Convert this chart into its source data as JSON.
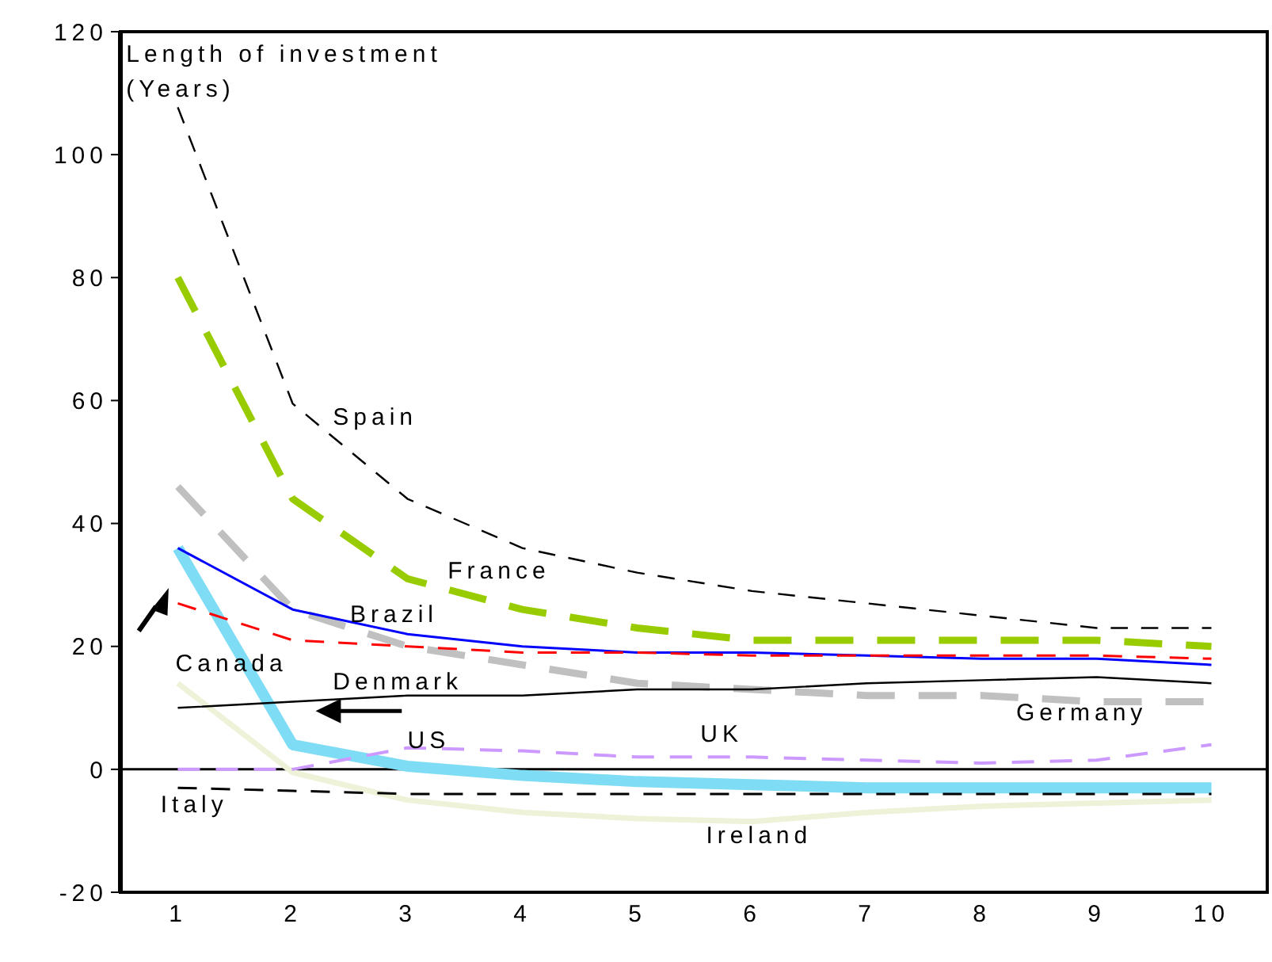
{
  "chart_data": {
    "type": "line",
    "ylabel": "Length of investment (Years)",
    "x": [
      1,
      2,
      3,
      4,
      5,
      6,
      7,
      8,
      9,
      10
    ],
    "xlim": [
      0.5,
      10.5
    ],
    "xticks": [
      1,
      2,
      3,
      4,
      5,
      6,
      7,
      8,
      9,
      10
    ],
    "ylim": [
      -20,
      120
    ],
    "yticks": [
      -20,
      0,
      20,
      40,
      60,
      80,
      100,
      120
    ],
    "grid": false,
    "legend": false,
    "marker": "none",
    "ref_lines": [
      {
        "axis": "y",
        "value": 0,
        "color": "#000000"
      }
    ],
    "series": [
      {
        "name": "Spain",
        "color": "#000000",
        "line_style": "dashed",
        "values": [
          107.7,
          59.5,
          44,
          36,
          32,
          29,
          27,
          25,
          23,
          23
        ]
      },
      {
        "name": "France",
        "color": "#99cc00",
        "line_style": "dashed",
        "values": [
          80,
          44,
          31,
          26,
          23,
          21,
          21,
          21,
          21,
          20
        ]
      },
      {
        "name": "Brazil",
        "color": "#0000ff",
        "line_style": "solid",
        "values": [
          36,
          26,
          22,
          20,
          19,
          19,
          18.5,
          18,
          18,
          17
        ]
      },
      {
        "name": "Canada",
        "color": "#ff0000",
        "line_style": "dashed",
        "values": [
          27,
          21,
          20,
          19,
          19,
          18.5,
          18.5,
          18.5,
          18.5,
          18
        ]
      },
      {
        "name": "Germany",
        "color": "#c0c0c0",
        "line_style": "dashed",
        "values": [
          46,
          26,
          20,
          17,
          14,
          13,
          12,
          12,
          11,
          11
        ]
      },
      {
        "name": "Denmark",
        "color": "#000000",
        "line_style": "solid",
        "values": [
          10,
          11,
          12,
          12,
          13,
          13,
          14,
          14.5,
          15,
          14
        ]
      },
      {
        "name": "US",
        "color": "#7fdcf5",
        "line_style": "solid",
        "values": [
          36,
          4,
          0.5,
          -1,
          -2,
          -2.5,
          -3,
          -3,
          -3,
          -3
        ]
      },
      {
        "name": "UK",
        "color": "#cc99ff",
        "line_style": "dashed",
        "values": [
          0,
          0,
          3.5,
          3,
          2,
          2,
          1.5,
          1,
          1.5,
          4
        ]
      },
      {
        "name": "Italy",
        "color": "#000000",
        "line_style": "dashed",
        "values": [
          -3,
          -3.5,
          -4,
          -4,
          -4,
          -4,
          -4,
          -4,
          -4,
          -4
        ]
      },
      {
        "name": "Ireland",
        "color": "#eef2d8",
        "line_style": "solid",
        "values": [
          14,
          -0.5,
          -5,
          -7,
          -8,
          -8.5,
          -7,
          -6,
          -5.5,
          -5
        ]
      }
    ]
  }
}
